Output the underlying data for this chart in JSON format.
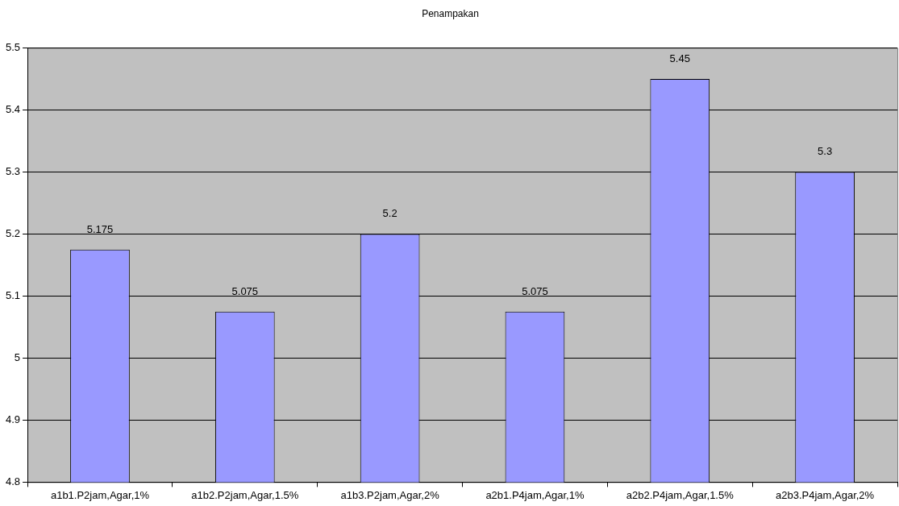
{
  "chart_data": {
    "type": "bar",
    "title": "Penampakan",
    "categories": [
      "a1b1.P2jam,Agar,1%",
      "a1b2.P2jam,Agar,1.5%",
      "a1b3.P2jam,Agar,2%",
      "a2b1.P4jam,Agar,1%",
      "a2b2.P4jam,Agar,1.5%",
      "a2b3.P4jam,Agar,2%"
    ],
    "values": [
      5.175,
      5.075,
      5.2,
      5.075,
      5.45,
      5.3
    ],
    "color": "#9999ff",
    "ylim": [
      4.8,
      5.5
    ],
    "yticks": [
      4.8,
      4.9,
      5,
      5.1,
      5.2,
      5.3,
      5.4,
      5.5
    ],
    "grid": "y",
    "data_labels": true
  }
}
